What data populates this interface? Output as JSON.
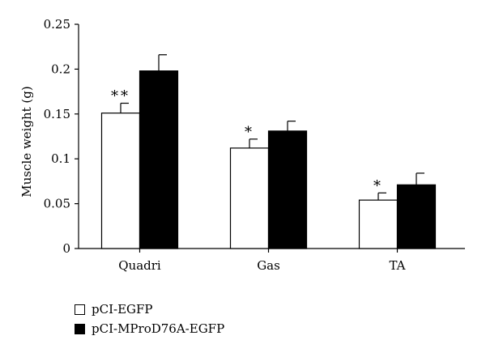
{
  "chart_data": {
    "type": "bar",
    "title": "",
    "xlabel": "",
    "ylabel": "Muscle weight (g)",
    "ylim": [
      0,
      0.25
    ],
    "yticks": [
      0,
      0.05,
      0.1,
      0.15,
      0.2,
      0.25
    ],
    "ytick_labels": [
      "0",
      "0.05",
      "0.1",
      "0.15",
      "0.2",
      "0.25"
    ],
    "categories": [
      "Quadri",
      "Gas",
      "TA"
    ],
    "series": [
      {
        "name": "pCI-EGFP",
        "color": "#ffffff",
        "values": [
          0.151,
          0.112,
          0.054
        ],
        "errors": [
          0.011,
          0.01,
          0.008
        ],
        "annotations": [
          "**",
          "*",
          "*"
        ]
      },
      {
        "name": "pCI-MProD76A-EGFP",
        "color": "#000000",
        "values": [
          0.198,
          0.131,
          0.071
        ],
        "errors": [
          0.018,
          0.011,
          0.013
        ],
        "annotations": [
          "",
          "",
          ""
        ]
      }
    ],
    "legend": {
      "placement": "bottom-left"
    },
    "grid": false
  }
}
